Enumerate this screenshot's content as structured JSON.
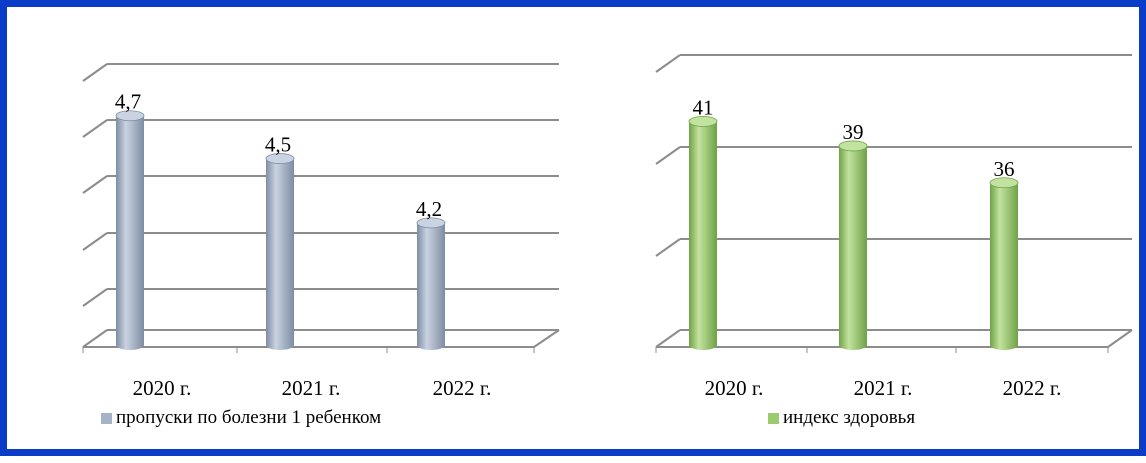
{
  "chart_data": [
    {
      "type": "bar",
      "categories": [
        "2020 г.",
        "2021 г.",
        "2022 г."
      ],
      "series": [
        {
          "name": "пропуски по болезни 1 ребенком",
          "values": [
            4.7,
            4.5,
            4.2
          ],
          "labels": [
            "4,7",
            "4,5",
            "4,2"
          ]
        }
      ],
      "ylim": [
        3.7,
        4.75
      ],
      "color": "#a5b3c9",
      "color_dark": "#7e8ca3",
      "color_light": "#c9d3e1",
      "grid": true,
      "legend_position": "bottom-left"
    },
    {
      "type": "bar",
      "categories": [
        "2020 г.",
        "2021 г.",
        "2022 г."
      ],
      "series": [
        {
          "name": "индекс здоровья",
          "values": [
            41,
            39,
            36
          ],
          "labels": [
            "41",
            "39",
            "36"
          ]
        }
      ],
      "ylim": [
        24,
        42.5
      ],
      "color": "#9bcb6c",
      "color_dark": "#6fa246",
      "color_light": "#c2e39f",
      "grid": true,
      "legend_position": "bottom-center"
    }
  ]
}
